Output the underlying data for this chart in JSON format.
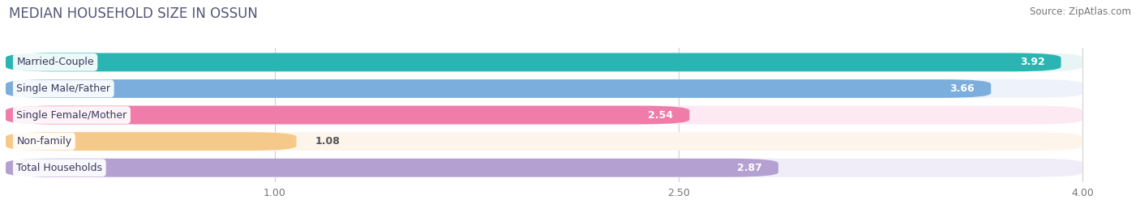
{
  "title": "MEDIAN HOUSEHOLD SIZE IN OSSUN",
  "source": "Source: ZipAtlas.com",
  "categories": [
    "Married-Couple",
    "Single Male/Father",
    "Single Female/Mother",
    "Non-family",
    "Total Households"
  ],
  "values": [
    3.92,
    3.66,
    2.54,
    1.08,
    2.87
  ],
  "bar_colors": [
    "#2ab5b2",
    "#7baedd",
    "#f07caa",
    "#f5c98a",
    "#b5a0d2"
  ],
  "bar_bg_colors": [
    "#e8f5f5",
    "#eef2fb",
    "#fce9f2",
    "#fdf5eb",
    "#f0ecf8"
  ],
  "xlim_start": 0,
  "xlim_end": 4.15,
  "xaxis_max": 4.0,
  "xticks": [
    1.0,
    2.5,
    4.0
  ],
  "value_color_inside": [
    "#ffffff",
    "#ffffff",
    "#555555",
    "#555555",
    "#555555"
  ],
  "value_threshold": 1.5,
  "title_fontsize": 12,
  "source_fontsize": 8.5,
  "bar_label_fontsize": 9,
  "value_fontsize": 9,
  "background_color": "#ffffff"
}
